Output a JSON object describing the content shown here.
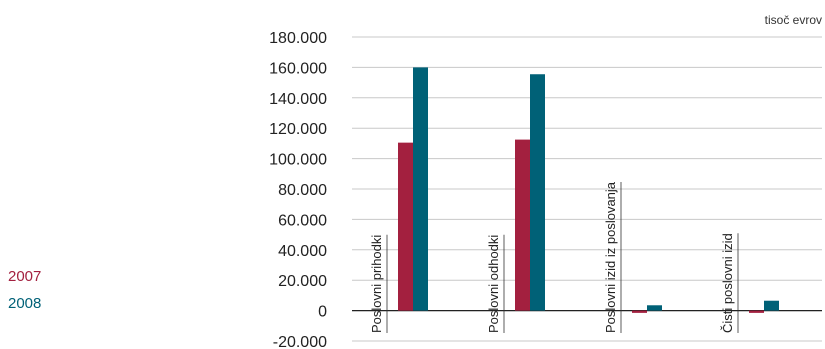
{
  "chart_data": {
    "type": "bar",
    "unit_label": "tisoč evrov",
    "categories": [
      "Poslovni prihodki",
      "Poslovni odhodki",
      "Poslovni izid iz poslovanja",
      "Čisti poslovni izid"
    ],
    "series": [
      {
        "name": "2007",
        "color": "#a3203f",
        "values": [
          110500,
          112500,
          -1500,
          -1500
        ]
      },
      {
        "name": "2008",
        "color": "#006177",
        "values": [
          160000,
          155500,
          3500,
          6500
        ]
      }
    ],
    "yticks": [
      "180.000",
      "160.000",
      "140.000",
      "120.000",
      "100.000",
      "80.000",
      "60.000",
      "40.000",
      "20.000",
      "0",
      "-20.000"
    ],
    "ylim": [
      -20000,
      180000
    ],
    "grid": true,
    "legend_position": "left"
  }
}
